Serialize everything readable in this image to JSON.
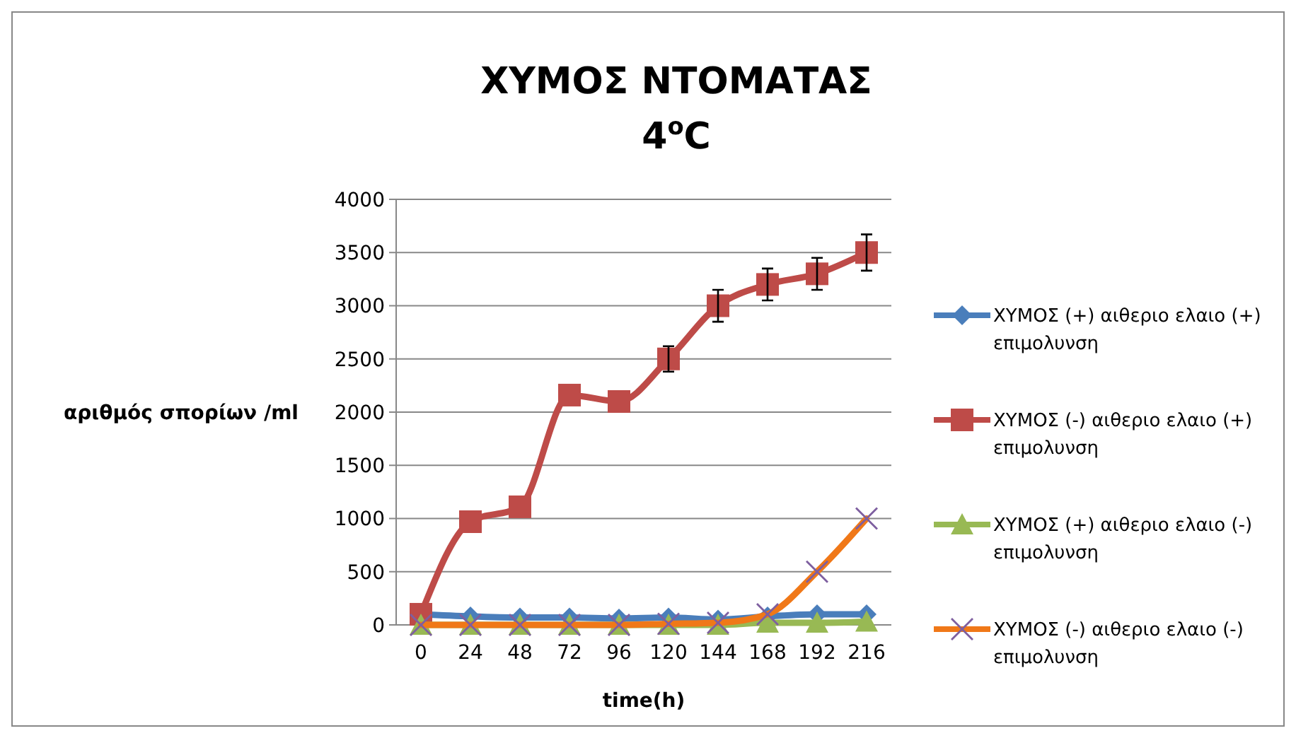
{
  "chart_data": {
    "type": "line",
    "title": "ΧΥΜΟΣ ΝΤΟΜΑΤΑΣ",
    "subtitle": "4$^{o}$C",
    "xlabel": "time(h)",
    "ylabel": "αριθμός σπορίων /ml",
    "categories": [
      "0",
      "24",
      "48",
      "72",
      "96",
      "120",
      "144",
      "168",
      "192",
      "216"
    ],
    "ylim": [
      0,
      4000
    ],
    "yticks": [
      0,
      500,
      1000,
      1500,
      2000,
      2500,
      3000,
      3500,
      4000
    ],
    "grid": "y",
    "legend": "right",
    "series": [
      {
        "name": "ΧΥΜΟΣ (+) αιθεριο ελαιο (+) επιμολυνση",
        "color": "#4a7ebb",
        "marker": "diamond",
        "values": [
          100,
          80,
          70,
          70,
          60,
          70,
          50,
          80,
          100,
          100
        ]
      },
      {
        "name": "ΧΥΜΟΣ (-) αιθεριο ελαιο (+) επιμολυνση",
        "color": "#be4b48",
        "marker": "square",
        "values": [
          100,
          970,
          1110,
          2160,
          2100,
          2500,
          3000,
          3200,
          3300,
          3500
        ],
        "errors": [
          null,
          null,
          null,
          null,
          null,
          120,
          150,
          150,
          150,
          170
        ]
      },
      {
        "name": "ΧΥΜΟΣ (+) αιθεριο ελαιο (-) επιμολυνση",
        "color": "#98b954",
        "marker": "triangle",
        "values": [
          0,
          0,
          0,
          0,
          0,
          0,
          0,
          20,
          20,
          30
        ]
      },
      {
        "name": "ΧΥΜΟΣ (-) αιθεριο ελαιο (-) επιμολυνση",
        "color": "#f07818",
        "marker": "cross",
        "values": [
          0,
          0,
          0,
          0,
          0,
          10,
          20,
          100,
          500,
          1000
        ]
      }
    ]
  }
}
